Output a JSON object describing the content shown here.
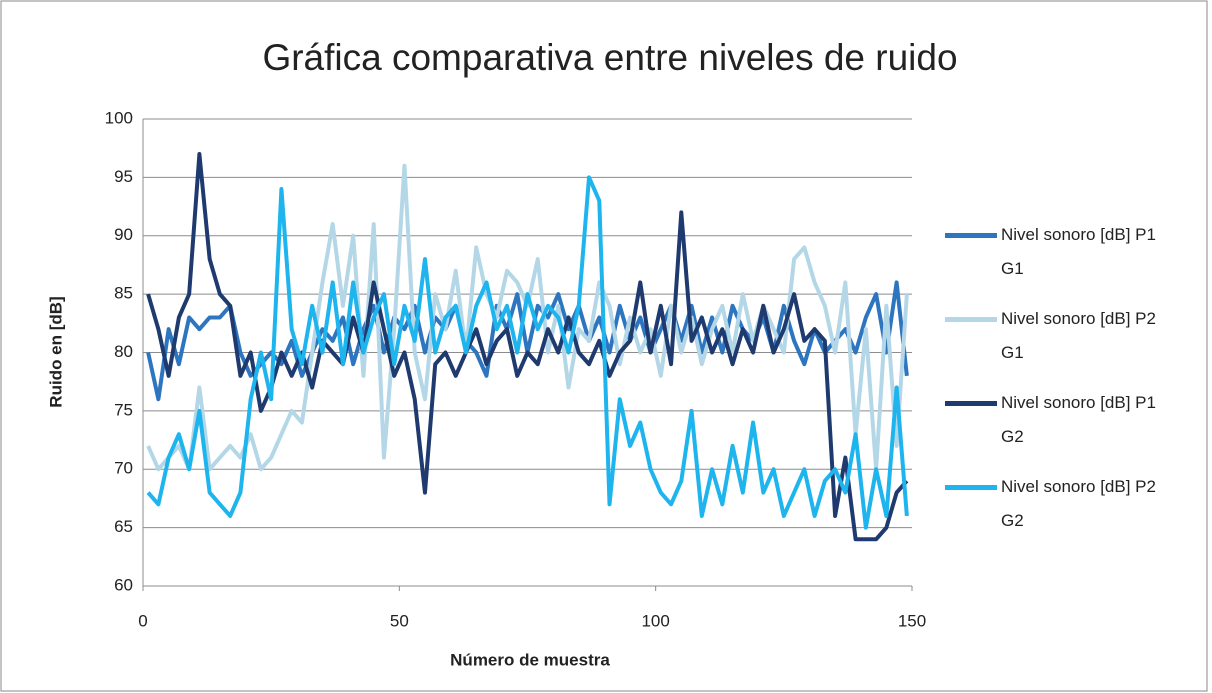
{
  "chart_data": {
    "type": "line",
    "title": "Gráfica comparativa entre niveles de ruido",
    "xlabel": "Número de muestra",
    "ylabel": "Ruido en [dB]",
    "x": [
      1,
      3,
      5,
      7,
      9,
      11,
      13,
      15,
      17,
      19,
      21,
      23,
      25,
      27,
      29,
      31,
      33,
      35,
      37,
      39,
      41,
      43,
      45,
      47,
      49,
      51,
      53,
      55,
      57,
      59,
      61,
      63,
      65,
      67,
      69,
      71,
      73,
      75,
      77,
      79,
      81,
      83,
      85,
      87,
      89,
      91,
      93,
      95,
      97,
      99,
      101,
      103,
      105,
      107,
      109,
      111,
      113,
      115,
      117,
      119,
      121,
      123,
      125,
      127,
      129,
      131,
      133,
      135,
      137,
      139,
      141,
      143,
      145,
      147,
      149
    ],
    "series": [
      {
        "name": "Nivel sonoro [dB] P1 G1",
        "color": "#2e75c0",
        "values": [
          80,
          76,
          82,
          79,
          83,
          82,
          83,
          83,
          84,
          80,
          78,
          79,
          80,
          79,
          81,
          78,
          80,
          82,
          81,
          83,
          79,
          82,
          84,
          80,
          83,
          82,
          84,
          80,
          83,
          82,
          84,
          81,
          80,
          78,
          84,
          82,
          85,
          80,
          84,
          83,
          85,
          82,
          84,
          81,
          83,
          80,
          84,
          81,
          83,
          80,
          82,
          84,
          81,
          84,
          80,
          83,
          80,
          84,
          82,
          81,
          83,
          80,
          84,
          81,
          79,
          82,
          80,
          81,
          82,
          80,
          83,
          85,
          80,
          86,
          78
        ]
      },
      {
        "name": "Nivel sonoro [dB] P2 G1",
        "color": "#b4d7e8",
        "values": [
          72,
          70,
          71,
          72,
          70,
          77,
          70,
          71,
          72,
          71,
          73,
          70,
          71,
          73,
          75,
          74,
          80,
          86,
          91,
          84,
          90,
          78,
          91,
          71,
          82,
          96,
          80,
          76,
          85,
          82,
          87,
          80,
          89,
          85,
          83,
          87,
          86,
          84,
          88,
          80,
          84,
          77,
          82,
          81,
          86,
          84,
          79,
          83,
          80,
          82,
          78,
          84,
          80,
          83,
          79,
          82,
          84,
          80,
          85,
          81,
          84,
          82,
          80,
          88,
          89,
          86,
          84,
          80,
          86,
          73,
          82,
          70,
          84,
          72,
          85
        ]
      },
      {
        "name": "Nivel sonoro [dB] P1 G2",
        "color": "#1f3a6e",
        "values": [
          85,
          82,
          78,
          83,
          85,
          97,
          88,
          85,
          84,
          78,
          80,
          75,
          77,
          80,
          78,
          80,
          77,
          81,
          80,
          79,
          83,
          80,
          86,
          82,
          78,
          80,
          76,
          68,
          79,
          80,
          78,
          80,
          82,
          79,
          81,
          82,
          78,
          80,
          79,
          82,
          80,
          83,
          80,
          79,
          81,
          78,
          80,
          81,
          86,
          80,
          84,
          79,
          92,
          81,
          83,
          80,
          82,
          79,
          82,
          80,
          84,
          80,
          82,
          85,
          81,
          82,
          81,
          66,
          71,
          64,
          64,
          64,
          65,
          68,
          69
        ]
      },
      {
        "name": "Nivel sonoro [dB] P2 G2",
        "color": "#1eb4ee",
        "values": [
          68,
          67,
          71,
          73,
          70,
          75,
          68,
          67,
          66,
          68,
          76,
          80,
          76,
          94,
          82,
          79,
          84,
          80,
          86,
          79,
          86,
          80,
          83,
          85,
          79,
          84,
          81,
          88,
          80,
          83,
          84,
          80,
          84,
          86,
          82,
          84,
          80,
          85,
          82,
          84,
          83,
          80,
          84,
          95,
          93,
          67,
          76,
          72,
          74,
          70,
          68,
          67,
          69,
          75,
          66,
          70,
          67,
          72,
          68,
          74,
          68,
          70,
          66,
          68,
          70,
          66,
          69,
          70,
          68,
          73,
          65,
          70,
          66,
          77,
          66
        ]
      }
    ],
    "xlim": [
      0,
      150
    ],
    "xticks": [
      0,
      50,
      100,
      150
    ],
    "ylim": [
      60,
      100
    ],
    "yticks": [
      60,
      65,
      70,
      75,
      80,
      85,
      90,
      95,
      100
    ],
    "grid": true,
    "legend": "right"
  }
}
